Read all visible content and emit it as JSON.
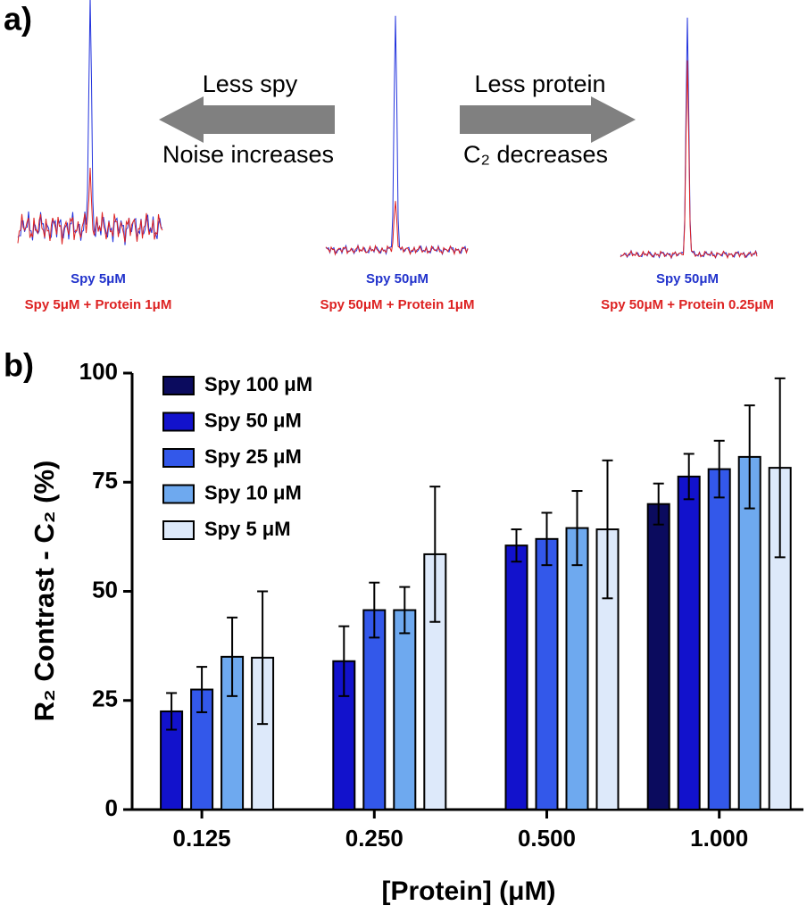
{
  "panel_a": {
    "label": "a)",
    "arrow_left": {
      "top": "Less spy",
      "bottom": "Noise increases"
    },
    "arrow_right": {
      "top": "Less protein",
      "bottom": "C₂ decreases"
    },
    "spectra": [
      {
        "blue_label": "Spy 5μM",
        "red_label": "Spy 5μM + Protein 1μM"
      },
      {
        "blue_label": "Spy 50μM",
        "red_label": "Spy 50μM + Protein 1μM"
      },
      {
        "blue_label": "Spy 50μM",
        "red_label": "Spy 50μM + Protein 0.25μM"
      }
    ]
  },
  "panel_b_label": "b)",
  "chart_data": {
    "type": "bar",
    "xlabel": "[Protein] (μM)",
    "ylabel": "R₂ Contrast - C₂ (%)",
    "categories": [
      "0.125",
      "0.250",
      "0.500",
      "1.000"
    ],
    "series": [
      {
        "name": "Spy 100 μM",
        "color": "#0b0b5e",
        "values": [
          null,
          null,
          null,
          70
        ],
        "errors": [
          null,
          null,
          null,
          4.7
        ]
      },
      {
        "name": "Spy 50 μM",
        "color": "#1212cc",
        "values": [
          22.5,
          34,
          60.5,
          76.3
        ],
        "errors": [
          4.2,
          8,
          3.7,
          5.2
        ]
      },
      {
        "name": "Spy 25 μM",
        "color": "#3358ea",
        "values": [
          27.5,
          45.7,
          62,
          78
        ],
        "errors": [
          5.2,
          6.3,
          6,
          6.5
        ]
      },
      {
        "name": "Spy 10 μM",
        "color": "#6ea9ef",
        "values": [
          35,
          45.7,
          64.5,
          80.8
        ],
        "errors": [
          9,
          5.3,
          8.5,
          11.8
        ]
      },
      {
        "name": "Spy 5 μM",
        "color": "#dde9fa",
        "values": [
          34.8,
          58.5,
          64.2,
          78.3
        ],
        "errors": [
          15.2,
          15.5,
          15.8,
          20.5
        ]
      }
    ],
    "ylim": [
      0,
      100
    ],
    "yticks": [
      0,
      25,
      50,
      75,
      100
    ],
    "legend": "upper left"
  }
}
